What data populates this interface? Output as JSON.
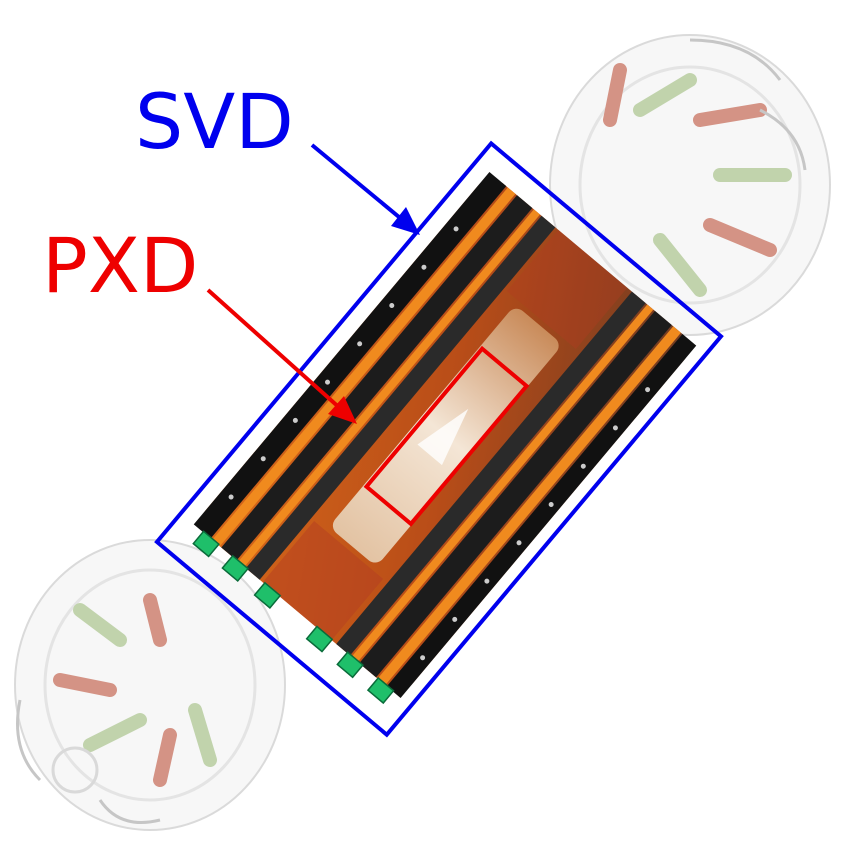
{
  "labels": {
    "svd": {
      "text": "SVD",
      "color": "#0000ee"
    },
    "pxd": {
      "text": "PXD",
      "color": "#ee0000"
    }
  },
  "palette": {
    "ladder_dark": "#111111",
    "ladder_mid": "#3a3a3a",
    "sensor_orange": "#f08a1e",
    "cable_red": "#b23c22",
    "board_green": "#8fb06a",
    "connector_green": "#1fbf6a",
    "ghost_grey": "#d6d6d6",
    "beam_pipe": "#c98b5a"
  }
}
